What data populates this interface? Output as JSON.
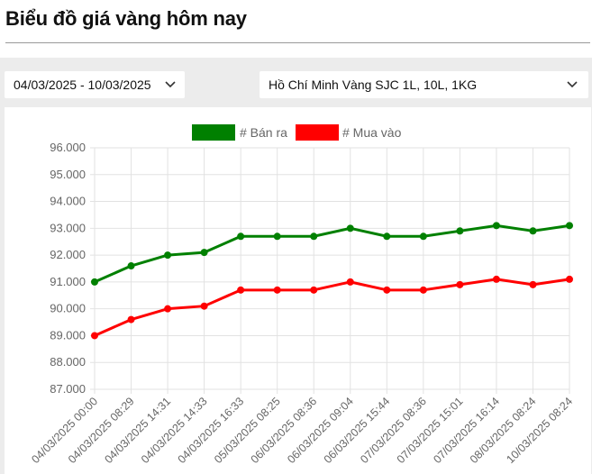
{
  "page": {
    "title": "Biểu đồ giá vàng hôm nay"
  },
  "filters": {
    "date_range": "04/03/2025 - 10/03/2025",
    "product": "Hồ Chí Minh Vàng SJC 1L, 10L, 1KG"
  },
  "icons": {
    "dropdown": "chevron-down-icon"
  },
  "chart_data": {
    "type": "line",
    "title": "",
    "xlabel": "",
    "ylabel": "",
    "x": [
      "04/03/2025 00:00",
      "04/03/2025 08:29",
      "04/03/2025 14:31",
      "04/03/2025 14:33",
      "04/03/2025 16:33",
      "05/03/2025 08:25",
      "06/03/2025 08:36",
      "06/03/2025 09:04",
      "06/03/2025 15:44",
      "07/03/2025 08:36",
      "07/03/2025 15:01",
      "07/03/2025 16:14",
      "08/03/2025 08:24",
      "10/03/2025 08:24"
    ],
    "series": [
      {
        "name": "# Bán ra",
        "color": "#008000",
        "values": [
          91000,
          91600,
          92000,
          92100,
          92700,
          92700,
          92700,
          93000,
          92700,
          92700,
          92900,
          93100,
          92900,
          93100
        ]
      },
      {
        "name": "# Mua vào",
        "color": "#ff0000",
        "values": [
          89000,
          89600,
          90000,
          90100,
          90700,
          90700,
          90700,
          91000,
          90700,
          90700,
          90900,
          91100,
          90900,
          91100
        ]
      }
    ],
    "ylim": [
      87000,
      96000
    ],
    "yticks": [
      "96.000",
      "95.000",
      "94.000",
      "93.000",
      "92.000",
      "91.000",
      "90.000",
      "89.000",
      "88.000",
      "87.000"
    ],
    "ytick_values": [
      96000,
      95000,
      94000,
      93000,
      92000,
      91000,
      90000,
      89000,
      88000,
      87000
    ],
    "grid": true,
    "legend_position": "top-center"
  }
}
